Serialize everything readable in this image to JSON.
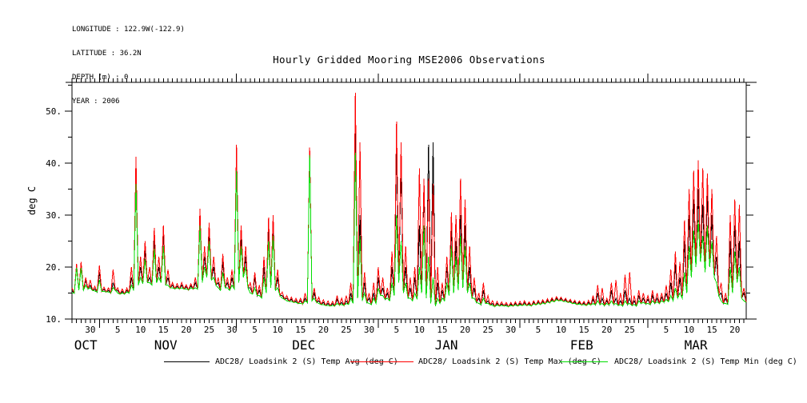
{
  "meta": {
    "lines": [
      "LONGITUDE : 122.9W(-122.9)",
      "LATITUDE : 36.2N",
      "DEPTH (m) : 0",
      "YEAR : 2006"
    ]
  },
  "chart_data": {
    "type": "line",
    "title": "Hourly Gridded Mooring MSE2006 Observations",
    "ylabel": "deg C",
    "ylim": [
      10,
      55.5
    ],
    "y_major_ticks": [
      10,
      20,
      30,
      40,
      50
    ],
    "y_tick_labels": [
      "10.",
      "20.",
      "30.",
      "40.",
      "50."
    ],
    "y_minor_ticks": [
      15,
      25,
      35,
      45,
      55
    ],
    "grid": false,
    "legend_position": "bottom",
    "x_axis": {
      "start_date": "2005-10-26",
      "end_date": "2006-03-22",
      "total_days": 147.5,
      "month_start_days": [
        6,
        36,
        67,
        98,
        126
      ],
      "month_labels": [
        {
          "label": "OCT",
          "day": 3.0
        },
        {
          "label": "NOV",
          "day": 20.5
        },
        {
          "label": "DEC",
          "day": 50.7
        },
        {
          "label": "JAN",
          "day": 81.9
        },
        {
          "label": "FEB",
          "day": 111.5
        },
        {
          "label": "MAR",
          "day": 136.5
        }
      ],
      "day_tick_labels": [
        {
          "day": 4,
          "label": "30"
        },
        {
          "day": 10,
          "label": "5"
        },
        {
          "day": 15,
          "label": "10"
        },
        {
          "day": 20,
          "label": "15"
        },
        {
          "day": 25,
          "label": "20"
        },
        {
          "day": 30,
          "label": "25"
        },
        {
          "day": 35,
          "label": "30"
        },
        {
          "day": 40,
          "label": "5"
        },
        {
          "day": 45,
          "label": "10"
        },
        {
          "day": 50,
          "label": "15"
        },
        {
          "day": 55,
          "label": "20"
        },
        {
          "day": 60,
          "label": "25"
        },
        {
          "day": 65,
          "label": "30"
        },
        {
          "day": 71,
          "label": "5"
        },
        {
          "day": 76,
          "label": "10"
        },
        {
          "day": 81,
          "label": "15"
        },
        {
          "day": 86,
          "label": "20"
        },
        {
          "day": 91,
          "label": "25"
        },
        {
          "day": 96,
          "label": "30"
        },
        {
          "day": 102,
          "label": "5"
        },
        {
          "day": 107,
          "label": "10"
        },
        {
          "day": 112,
          "label": "15"
        },
        {
          "day": 117,
          "label": "20"
        },
        {
          "day": 122,
          "label": "25"
        },
        {
          "day": 130,
          "label": "5"
        },
        {
          "day": 135,
          "label": "10"
        },
        {
          "day": 140,
          "label": "15"
        },
        {
          "day": 145,
          "label": "20"
        }
      ]
    },
    "series": [
      {
        "name": "ADC28/ Loadsink 2 (S) Temp Avg (deg C)",
        "color": "#000000",
        "daily_values": [
          15.5,
          20,
          20.5,
          17.5,
          16.5,
          15.8,
          19,
          15.7,
          15.5,
          17,
          15.5,
          15.3,
          15.5,
          18,
          37.5,
          20,
          23.5,
          18,
          25.5,
          20,
          26,
          18,
          16.5,
          16.3,
          16.5,
          16.2,
          16.4,
          17,
          29.5,
          22,
          27,
          20,
          17,
          21,
          17,
          18,
          40.5,
          26,
          22,
          16,
          18,
          15.5,
          20,
          27,
          28,
          18,
          14.5,
          14,
          13.8,
          13.5,
          13.5,
          14,
          41.8,
          15,
          13.5,
          13.2,
          13,
          13,
          13.8,
          13.2,
          13.5,
          15,
          46,
          30,
          17,
          14,
          15,
          18,
          16,
          15,
          20,
          43,
          40,
          20,
          16,
          18,
          28,
          35.5,
          43.5,
          44,
          17,
          15.5,
          20,
          28,
          25,
          30,
          28,
          20,
          16,
          14,
          15.5,
          13.5,
          13,
          13,
          12.9,
          12.8,
          12.9,
          13,
          13,
          13.1,
          13,
          13.2,
          13.3,
          13.4,
          13.6,
          13.8,
          14,
          13.9,
          13.7,
          13.5,
          13.3,
          13.2,
          13.1,
          13.2,
          13.8,
          15,
          14,
          13.5,
          15.5,
          14,
          13.5,
          15.5,
          14,
          13.5,
          14.5,
          14,
          13.8,
          14.5,
          14,
          14.2,
          15,
          17,
          20.5,
          18,
          25,
          30,
          33,
          35,
          32,
          34,
          30,
          22,
          15,
          14,
          25,
          28,
          25,
          15
        ]
      },
      {
        "name": "ADC28/ Loadsink 2 (S) Temp Max (deg C)",
        "color": "#ff0000",
        "daily_values": [
          16,
          20.6,
          21,
          18,
          17.5,
          16.3,
          20.3,
          16.1,
          16,
          19.5,
          16,
          15.8,
          16,
          20,
          41.2,
          22,
          25,
          20,
          27.5,
          22,
          28,
          19.5,
          17,
          16.8,
          17,
          16.6,
          16.8,
          18,
          31.2,
          24,
          28.5,
          22,
          18,
          22.5,
          18,
          19.5,
          43.5,
          28,
          24,
          17,
          19,
          16.5,
          22,
          29.5,
          30,
          19.5,
          15.2,
          14.5,
          14.2,
          14,
          14,
          15,
          43,
          16,
          14.2,
          13.7,
          13.5,
          13.4,
          14.5,
          14,
          14.5,
          17,
          53.5,
          44,
          19,
          15,
          17,
          20,
          18,
          16,
          23,
          48,
          44,
          24,
          18,
          20,
          39,
          37,
          37,
          36,
          20,
          17,
          22,
          30.5,
          30,
          37,
          33,
          24,
          18,
          15,
          17,
          14.5,
          13.5,
          13.4,
          13.3,
          13.2,
          13.2,
          13.3,
          13.4,
          13.5,
          13.3,
          13.5,
          13.6,
          13.7,
          13.9,
          14.1,
          14.3,
          14.2,
          14,
          13.8,
          13.6,
          13.5,
          13.4,
          13.6,
          14.5,
          16.5,
          16,
          14,
          17,
          17.5,
          15,
          18.5,
          19,
          14.5,
          15.5,
          15,
          14.5,
          15.5,
          15,
          15,
          16.5,
          19.5,
          23,
          21,
          29,
          35,
          38.5,
          40.5,
          39,
          38,
          35,
          26,
          17,
          15,
          30,
          33,
          32,
          16
        ]
      },
      {
        "name": "ADC28/ Loadsink 2 (S) Temp Min (deg C)",
        "color": "#00dd00",
        "daily_values": [
          15,
          19.8,
          19.8,
          16.5,
          16,
          15.4,
          17.5,
          15.3,
          15.2,
          16,
          15,
          15,
          15.2,
          16.5,
          36,
          18,
          21.5,
          17,
          23.5,
          18,
          24,
          16.5,
          16,
          16,
          16,
          15.8,
          16,
          16,
          28,
          20,
          25,
          18,
          16,
          19,
          16,
          16.5,
          38.5,
          24,
          20,
          15,
          16,
          14.5,
          18,
          25,
          26,
          16,
          14,
          13.5,
          13.4,
          13.2,
          13,
          13.5,
          41.5,
          14,
          13,
          12.8,
          12.6,
          12.6,
          13,
          12.8,
          13,
          14,
          42,
          26,
          15,
          13,
          14,
          16,
          14.5,
          14,
          17,
          30,
          25,
          17,
          14,
          15,
          20,
          28,
          22,
          18,
          14,
          14,
          17,
          24,
          22,
          26,
          24,
          17,
          14,
          13,
          14,
          13,
          12.6,
          12.7,
          12.6,
          12.5,
          12.6,
          12.7,
          12.7,
          12.8,
          12.7,
          12.9,
          13,
          13.1,
          13.3,
          13.5,
          13.7,
          13.6,
          13.4,
          13.2,
          13,
          12.9,
          12.8,
          12.9,
          13,
          13.5,
          13,
          13,
          13.5,
          13,
          12.8,
          13.5,
          13,
          12.8,
          13.5,
          13.2,
          13,
          13.5,
          13.3,
          13.5,
          13.8,
          14.5,
          16,
          15,
          19,
          24,
          27,
          29,
          26,
          28,
          25,
          17,
          13.5,
          13,
          20,
          23,
          20,
          13.5
        ]
      }
    ],
    "daily_interday_lows": [
      15,
      15.5,
      15.5,
      15.8,
      15.5,
      15.2,
      15.3,
      15.2,
      15,
      15.5,
      14.8,
      14.8,
      15,
      15.5,
      16.5,
      16.8,
      17,
      16.5,
      17,
      17,
      16.5,
      16,
      15.8,
      15.8,
      15.8,
      15.6,
      15.8,
      15.7,
      17,
      18,
      17.5,
      16.5,
      15.5,
      16,
      15.5,
      15.8,
      17,
      18,
      16,
      14.8,
      14.5,
      14,
      15,
      16,
      15.5,
      14.5,
      13.8,
      13.4,
      13.2,
      13,
      12.9,
      13.2,
      13.5,
      13.2,
      12.8,
      12.6,
      12.5,
      12.5,
      12.7,
      12.6,
      12.8,
      13,
      14,
      13.5,
      13.2,
      12.8,
      13,
      14.5,
      13.8,
      13.5,
      14.5,
      17,
      15,
      14,
      13.5,
      13.8,
      15,
      14,
      13,
      12.5,
      13,
      13.5,
      14.5,
      15,
      15.5,
      16,
      15,
      14,
      13.2,
      12.8,
      13,
      12.7,
      12.4,
      12.5,
      12.5,
      12.4,
      12.5,
      12.5,
      12.6,
      12.6,
      12.5,
      12.7,
      12.8,
      12.9,
      13.1,
      13.3,
      13.5,
      13.4,
      13.2,
      13,
      12.8,
      12.7,
      12.6,
      12.7,
      12.7,
      12.8,
      12.6,
      12.7,
      12.8,
      12.6,
      12.5,
      12.8,
      12.6,
      12.5,
      13,
      12.9,
      12.8,
      13,
      13,
      13.2,
      13.3,
      13.5,
      14,
      14,
      15,
      18,
      20,
      21,
      19,
      20,
      18,
      14.5,
      13,
      12.8,
      15,
      17,
      14,
      13.2
    ]
  }
}
